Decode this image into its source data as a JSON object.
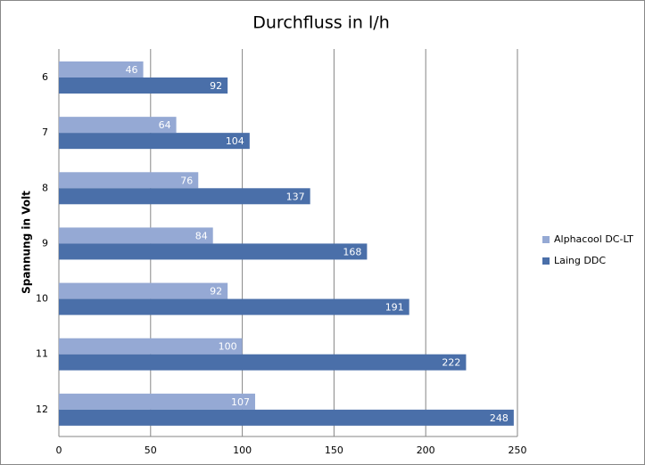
{
  "chart_data": {
    "type": "bar",
    "orientation": "horizontal",
    "title": "Durchfluss in l/h",
    "y_label": "Spannung in Volt",
    "categories": [
      "6",
      "7",
      "8",
      "9",
      "10",
      "11",
      "12"
    ],
    "series": [
      {
        "name": "Alphacool DC-LT",
        "color": "#95a9d4",
        "values": [
          46,
          64,
          76,
          84,
          92,
          100,
          107
        ]
      },
      {
        "name": "Laing DDC",
        "color": "#4a6fa9",
        "values": [
          92,
          104,
          137,
          168,
          191,
          222,
          248
        ]
      }
    ],
    "xlim": [
      0,
      250
    ],
    "xticks": [
      0,
      50,
      100,
      150,
      200,
      250
    ],
    "grid": true,
    "legend": "right"
  }
}
